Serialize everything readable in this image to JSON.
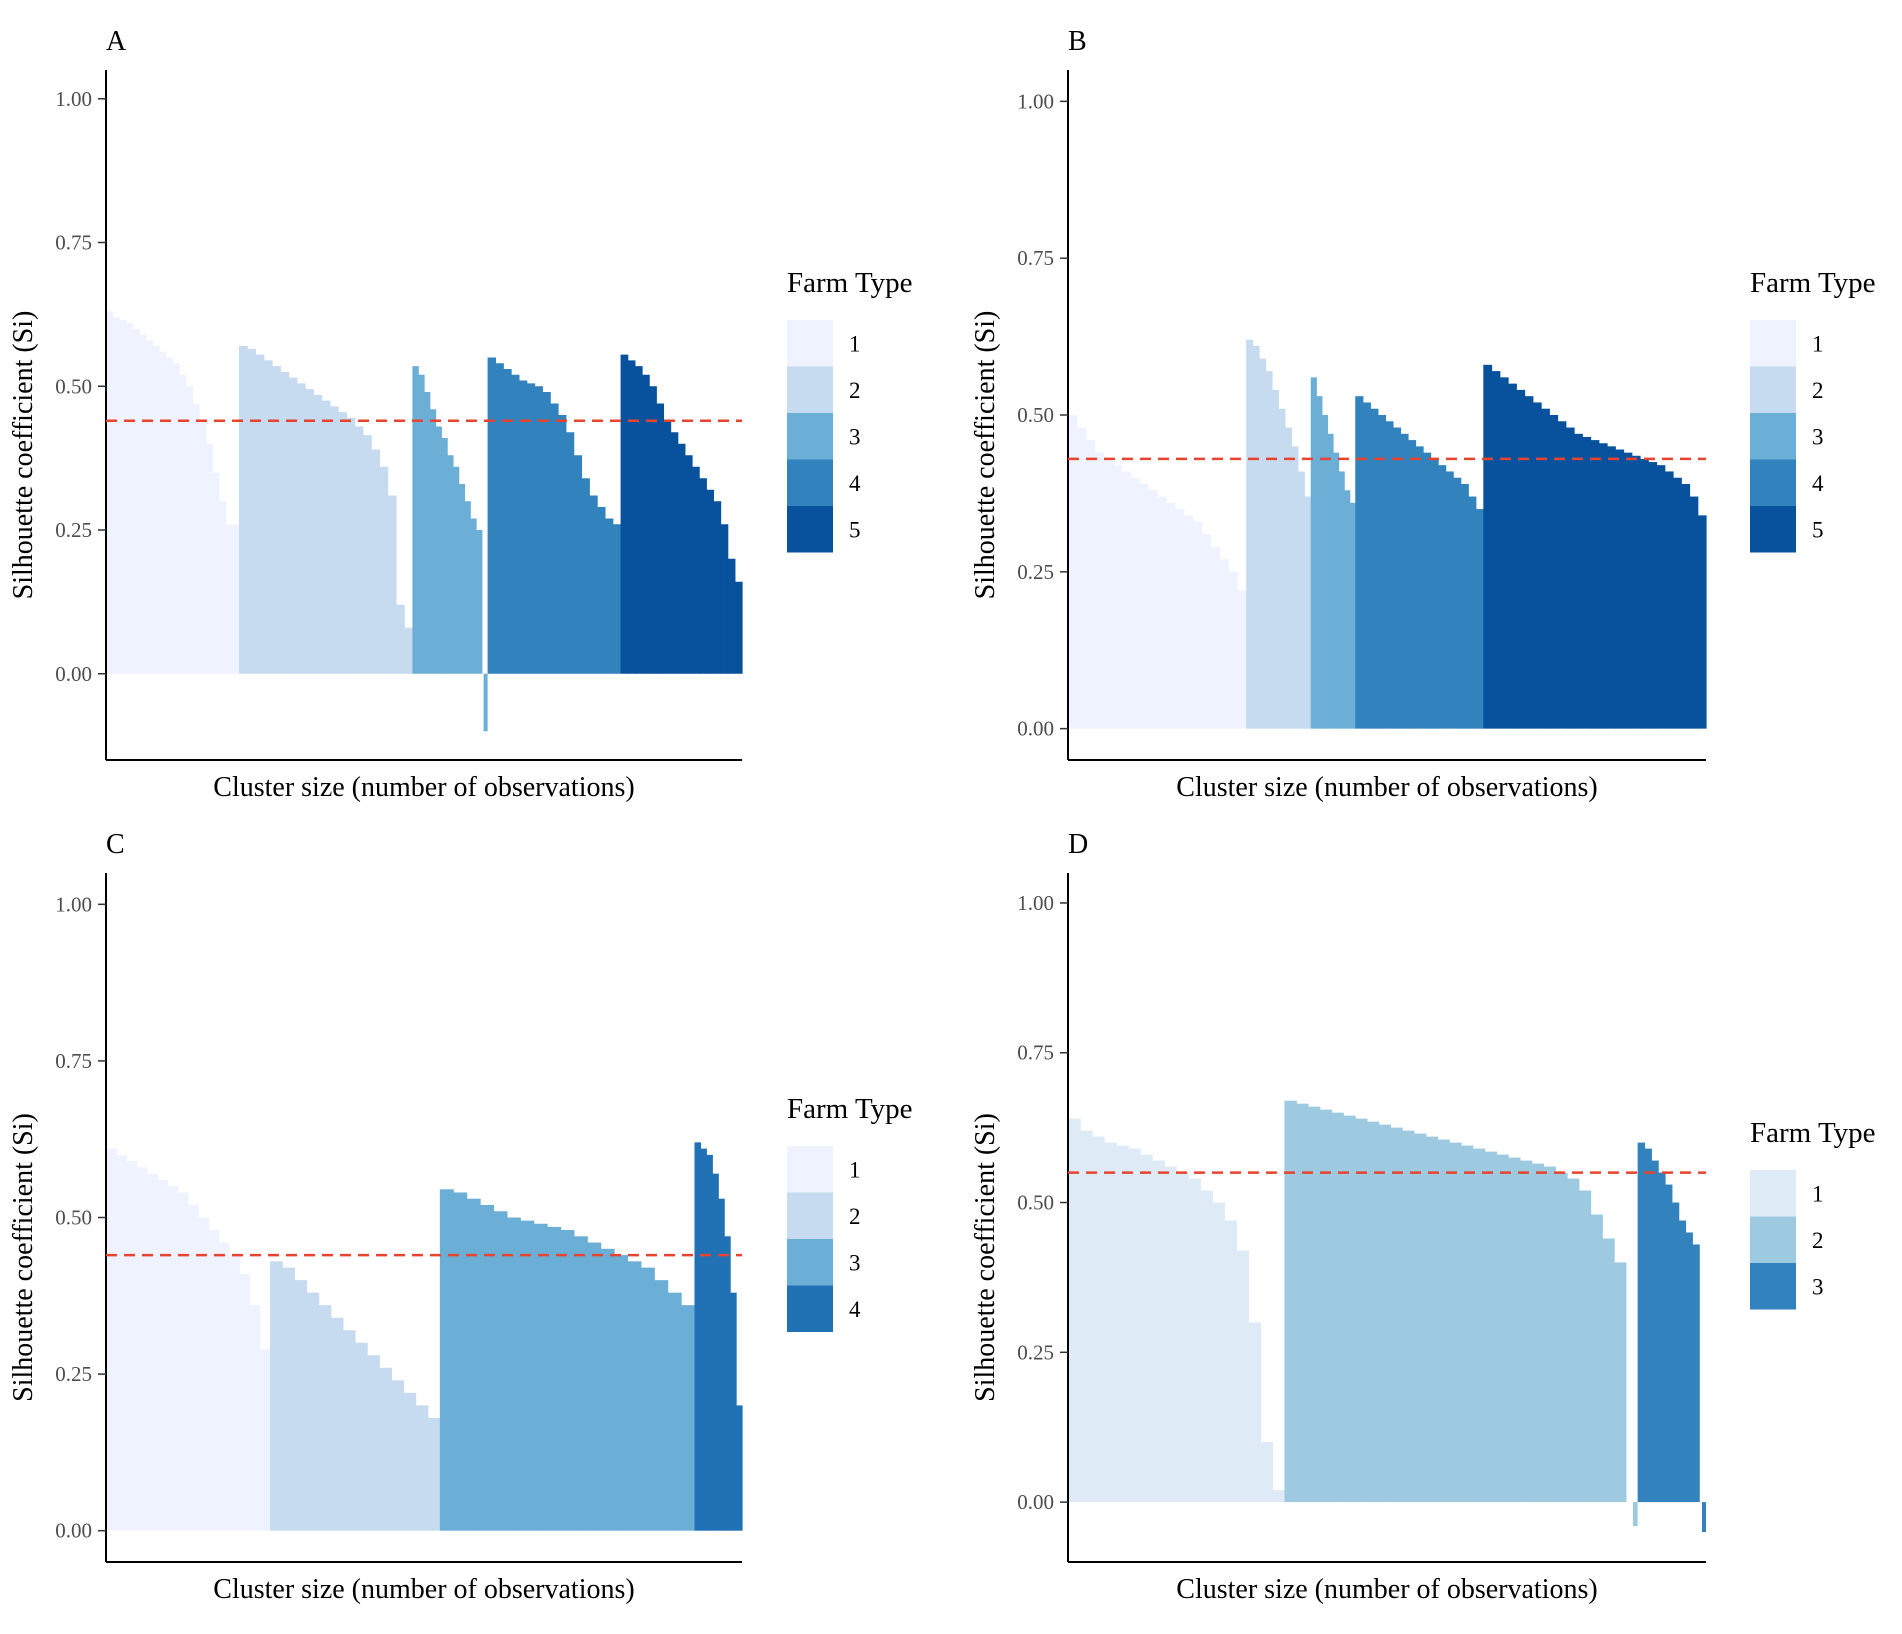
{
  "chart_data": [
    {
      "type": "bar",
      "panel": "A",
      "title": "A",
      "xlabel": "Cluster size (number of observations)",
      "ylabel": "Silhouette coefficient (Si)",
      "ylim": [
        -0.15,
        1.05
      ],
      "yticks": [
        "0.00",
        "0.25",
        "0.50",
        "0.75",
        "1.00"
      ],
      "ytick_values": [
        0,
        0.25,
        0.5,
        0.75,
        1.0
      ],
      "average_silhouette": 0.44,
      "legend_title": "Farm Type",
      "legend_position": "right",
      "series": [
        {
          "name": "1",
          "color": "#eff3ff",
          "size": 115,
          "values": [
            0.63,
            0.62,
            0.615,
            0.61,
            0.6,
            0.59,
            0.58,
            0.57,
            0.56,
            0.55,
            0.54,
            0.52,
            0.5,
            0.47,
            0.44,
            0.4,
            0.35,
            0.3,
            0.26,
            0.26
          ]
        },
        {
          "name": "2",
          "color": "#c6dbef",
          "size": 150,
          "values": [
            0.57,
            0.565,
            0.555,
            0.545,
            0.535,
            0.525,
            0.515,
            0.505,
            0.495,
            0.485,
            0.475,
            0.465,
            0.455,
            0.445,
            0.43,
            0.415,
            0.39,
            0.36,
            0.31,
            0.12,
            0.08
          ]
        },
        {
          "name": "3",
          "color": "#6baed6",
          "size": 65,
          "values": [
            0.535,
            0.52,
            0.49,
            0.46,
            0.43,
            0.41,
            0.38,
            0.36,
            0.33,
            0.3,
            0.27,
            0.25,
            -0.1
          ]
        },
        {
          "name": "4",
          "color": "#3182bd",
          "size": 115,
          "values": [
            0.55,
            0.54,
            0.53,
            0.52,
            0.51,
            0.505,
            0.5,
            0.49,
            0.47,
            0.45,
            0.42,
            0.38,
            0.34,
            0.31,
            0.29,
            0.27,
            0.26
          ]
        },
        {
          "name": "5",
          "color": "#08519c",
          "size": 105,
          "values": [
            0.555,
            0.545,
            0.535,
            0.52,
            0.5,
            0.47,
            0.44,
            0.42,
            0.4,
            0.38,
            0.36,
            0.34,
            0.32,
            0.3,
            0.26,
            0.2,
            0.16
          ]
        }
      ]
    },
    {
      "type": "bar",
      "panel": "B",
      "title": "B",
      "xlabel": "Cluster size (number of observations)",
      "ylabel": "Silhouette coefficient (Si)",
      "ylim": [
        -0.05,
        1.05
      ],
      "yticks": [
        "0.00",
        "0.25",
        "0.50",
        "0.75",
        "1.00"
      ],
      "ytick_values": [
        0,
        0.25,
        0.5,
        0.75,
        1.0
      ],
      "average_silhouette": 0.43,
      "legend_title": "Farm Type",
      "legend_position": "right",
      "series": [
        {
          "name": "1",
          "color": "#eff3ff",
          "size": 160,
          "values": [
            0.5,
            0.48,
            0.46,
            0.44,
            0.43,
            0.42,
            0.41,
            0.4,
            0.39,
            0.38,
            0.37,
            0.36,
            0.35,
            0.34,
            0.33,
            0.31,
            0.29,
            0.27,
            0.25,
            0.22
          ]
        },
        {
          "name": "2",
          "color": "#c6dbef",
          "size": 58,
          "values": [
            0.62,
            0.61,
            0.59,
            0.57,
            0.54,
            0.51,
            0.48,
            0.45,
            0.41,
            0.37
          ]
        },
        {
          "name": "3",
          "color": "#6baed6",
          "size": 40,
          "values": [
            0.56,
            0.53,
            0.5,
            0.47,
            0.44,
            0.41,
            0.38,
            0.36
          ]
        },
        {
          "name": "4",
          "color": "#3182bd",
          "size": 115,
          "values": [
            0.53,
            0.52,
            0.51,
            0.5,
            0.49,
            0.48,
            0.47,
            0.46,
            0.45,
            0.44,
            0.43,
            0.42,
            0.41,
            0.4,
            0.39,
            0.37,
            0.35
          ]
        },
        {
          "name": "5",
          "color": "#08519c",
          "size": 200,
          "values": [
            0.58,
            0.57,
            0.56,
            0.55,
            0.54,
            0.53,
            0.52,
            0.51,
            0.5,
            0.49,
            0.48,
            0.47,
            0.465,
            0.46,
            0.455,
            0.45,
            0.445,
            0.44,
            0.435,
            0.43,
            0.425,
            0.42,
            0.41,
            0.4,
            0.39,
            0.37,
            0.34
          ]
        }
      ]
    },
    {
      "type": "bar",
      "panel": "C",
      "title": "C",
      "xlabel": "Cluster size (number of observations)",
      "ylabel": "Silhouette coefficient (Si)",
      "ylim": [
        -0.05,
        1.05
      ],
      "yticks": [
        "0.00",
        "0.25",
        "0.50",
        "0.75",
        "1.00"
      ],
      "ytick_values": [
        0,
        0.25,
        0.5,
        0.75,
        1.0
      ],
      "average_silhouette": 0.44,
      "legend_title": "Farm Type",
      "legend_position": "right",
      "series": [
        {
          "name": "1",
          "color": "#eff3ff",
          "size": 145,
          "values": [
            0.61,
            0.6,
            0.59,
            0.58,
            0.57,
            0.56,
            0.55,
            0.54,
            0.52,
            0.5,
            0.48,
            0.46,
            0.44,
            0.41,
            0.36,
            0.29
          ]
        },
        {
          "name": "2",
          "color": "#c6dbef",
          "size": 150,
          "values": [
            0.43,
            0.42,
            0.4,
            0.38,
            0.36,
            0.34,
            0.32,
            0.3,
            0.28,
            0.26,
            0.24,
            0.22,
            0.2,
            0.18
          ]
        },
        {
          "name": "3",
          "color": "#6baed6",
          "size": 225,
          "values": [
            0.545,
            0.54,
            0.53,
            0.52,
            0.51,
            0.5,
            0.495,
            0.49,
            0.485,
            0.48,
            0.47,
            0.46,
            0.45,
            0.44,
            0.43,
            0.42,
            0.4,
            0.38,
            0.36
          ]
        },
        {
          "name": "4",
          "color": "#2171b5",
          "size": 42,
          "values": [
            0.62,
            0.61,
            0.6,
            0.57,
            0.53,
            0.47,
            0.38,
            0.2
          ]
        }
      ]
    },
    {
      "type": "bar",
      "panel": "D",
      "title": "D",
      "xlabel": "Cluster size (number of observations)",
      "ylabel": "Silhouette coefficient (Si)",
      "ylim": [
        -0.1,
        1.05
      ],
      "yticks": [
        "0.00",
        "0.25",
        "0.50",
        "0.75",
        "1.00"
      ],
      "ytick_values": [
        0,
        0.25,
        0.5,
        0.75,
        1.0
      ],
      "average_silhouette": 0.55,
      "legend_title": "Farm Type",
      "legend_position": "right",
      "series": [
        {
          "name": "1",
          "color": "#deebf7",
          "size": 190,
          "values": [
            0.64,
            0.62,
            0.61,
            0.6,
            0.595,
            0.59,
            0.58,
            0.57,
            0.56,
            0.55,
            0.54,
            0.52,
            0.5,
            0.47,
            0.42,
            0.3,
            0.1,
            0.02
          ]
        },
        {
          "name": "2",
          "color": "#9ecae1",
          "size": 310,
          "values": [
            0.67,
            0.665,
            0.66,
            0.655,
            0.65,
            0.645,
            0.64,
            0.635,
            0.63,
            0.625,
            0.62,
            0.615,
            0.61,
            0.605,
            0.6,
            0.595,
            0.59,
            0.585,
            0.58,
            0.575,
            0.57,
            0.565,
            0.56,
            0.55,
            0.54,
            0.52,
            0.48,
            0.44,
            0.4,
            -0.04
          ]
        },
        {
          "name": "3",
          "color": "#3182bd",
          "size": 60,
          "values": [
            0.6,
            0.59,
            0.57,
            0.55,
            0.53,
            0.5,
            0.47,
            0.45,
            0.43,
            -0.05
          ]
        }
      ]
    }
  ]
}
